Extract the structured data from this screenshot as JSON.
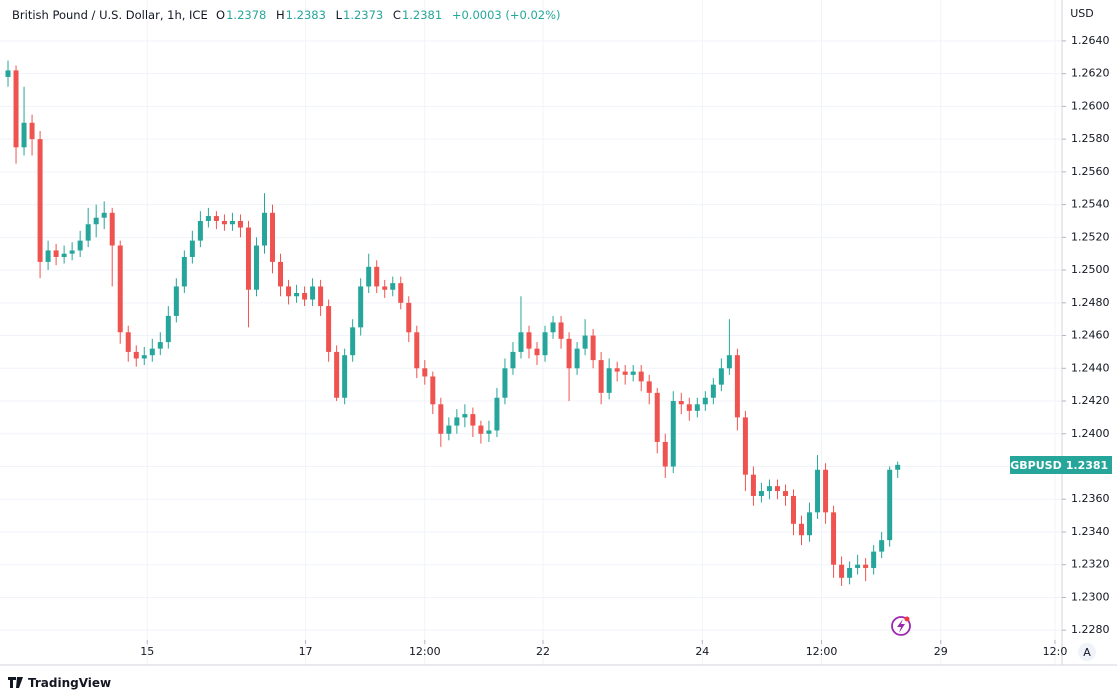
{
  "header": {
    "title": "British Pound / U.S. Dollar, 1h, ICE",
    "open_label": "O",
    "open": 1.2378,
    "high_label": "H",
    "high": 1.2383,
    "low_label": "L",
    "low": 1.2373,
    "close_label": "C",
    "close": 1.2381,
    "change": "+0.0003 (+0.02%)"
  },
  "footer": {
    "brand": "TradingView"
  },
  "ui": {
    "auto_button": "A"
  },
  "chart_data": {
    "type": "candlestick",
    "y_axis_label": "USD",
    "last_price": 1.2381,
    "up_color": "#26a69a",
    "down_color": "#ef5350",
    "grid": true,
    "xlim": [
      -1,
      131.5
    ],
    "ylim": [
      1.2274,
      1.2665
    ],
    "xticks": [
      {
        "value": 17.375,
        "label": "15"
      },
      {
        "value": 37.125,
        "label": "17"
      },
      {
        "value": 52,
        "label": "12:00"
      },
      {
        "value": 66.75,
        "label": "22"
      },
      {
        "value": 86.625,
        "label": "24"
      },
      {
        "value": 101.5,
        "label": "12:00"
      },
      {
        "value": 116.375,
        "label": "29"
      },
      {
        "value": 130.625,
        "label": "12:0"
      }
    ],
    "yticks": [
      {
        "value": 1.228,
        "label": "1.2280"
      },
      {
        "value": 1.23,
        "label": "1.2300"
      },
      {
        "value": 1.232,
        "label": "1.2320"
      },
      {
        "value": 1.234,
        "label": "1.2340"
      },
      {
        "value": 1.236,
        "label": "1.2360"
      },
      {
        "value": 1.238,
        "label": "1.2380"
      },
      {
        "value": 1.24,
        "label": "1.2400"
      },
      {
        "value": 1.242,
        "label": "1.2420"
      },
      {
        "value": 1.244,
        "label": "1.2440"
      },
      {
        "value": 1.246,
        "label": "1.2460"
      },
      {
        "value": 1.248,
        "label": "1.2480"
      },
      {
        "value": 1.25,
        "label": "1.2500"
      },
      {
        "value": 1.252,
        "label": "1.2520"
      },
      {
        "value": 1.254,
        "label": "1.2540"
      },
      {
        "value": 1.256,
        "label": "1.2560"
      },
      {
        "value": 1.258,
        "label": "1.2580"
      },
      {
        "value": 1.26,
        "label": "1.2600"
      },
      {
        "value": 1.262,
        "label": "1.2620"
      },
      {
        "value": 1.264,
        "label": "1.2640"
      }
    ],
    "series": [
      {
        "name": "GBPUSD",
        "open": [
          1.2618,
          1.2622,
          1.2575,
          1.259,
          1.258,
          1.2505,
          1.2512,
          1.2508,
          1.251,
          1.2512,
          1.2518,
          1.2528,
          1.2532,
          1.2535,
          1.2515,
          1.2462,
          1.245,
          1.2446,
          1.2448,
          1.2452,
          1.2456,
          1.2472,
          1.249,
          1.2508,
          1.2518,
          1.253,
          1.2533,
          1.253,
          1.2528,
          1.253,
          1.2526,
          1.2488,
          1.2515,
          1.2535,
          1.2505,
          1.249,
          1.2484,
          1.2486,
          1.2482,
          1.249,
          1.2478,
          1.245,
          1.2422,
          1.2448,
          1.2465,
          1.249,
          1.2502,
          1.249,
          1.2488,
          1.2492,
          1.248,
          1.2462,
          1.244,
          1.2435,
          1.2418,
          1.24,
          1.2405,
          1.241,
          1.2412,
          1.2405,
          1.24,
          1.2402,
          1.2422,
          1.244,
          1.245,
          1.2462,
          1.2452,
          1.2448,
          1.2462,
          1.2468,
          1.2458,
          1.244,
          1.2452,
          1.246,
          1.2445,
          1.2425,
          1.244,
          1.2438,
          1.2436,
          1.2438,
          1.2432,
          1.2425,
          1.2395,
          1.238,
          1.242,
          1.2418,
          1.2414,
          1.2418,
          1.2422,
          1.243,
          1.244,
          1.2448,
          1.241,
          1.2375,
          1.2362,
          1.2365,
          1.2368,
          1.2365,
          1.2362,
          1.2345,
          1.2338,
          1.2352,
          1.2378,
          1.2352,
          1.232,
          1.2312,
          1.2318,
          1.232,
          1.2318,
          1.2328,
          1.2335,
          1.2378
        ],
        "high": [
          1.2628,
          1.2625,
          1.2612,
          1.2595,
          1.2585,
          1.2518,
          1.2516,
          1.2515,
          1.2517,
          1.2524,
          1.2538,
          1.254,
          1.2542,
          1.2538,
          1.2518,
          1.2466,
          1.2454,
          1.2453,
          1.2458,
          1.2462,
          1.2478,
          1.2495,
          1.2512,
          1.2524,
          1.2536,
          1.2538,
          1.2536,
          1.2534,
          1.2535,
          1.2534,
          1.253,
          1.252,
          1.2547,
          1.254,
          1.251,
          1.2494,
          1.2491,
          1.249,
          1.2495,
          1.2494,
          1.2482,
          1.2454,
          1.2452,
          1.247,
          1.2495,
          1.251,
          1.2506,
          1.2494,
          1.2496,
          1.2496,
          1.2484,
          1.2466,
          1.2445,
          1.2438,
          1.2422,
          1.241,
          1.2415,
          1.2418,
          1.2416,
          1.2408,
          1.2408,
          1.2428,
          1.2446,
          1.2456,
          1.2484,
          1.2466,
          1.2456,
          1.2466,
          1.2472,
          1.2472,
          1.2462,
          1.2456,
          1.247,
          1.2464,
          1.245,
          1.2446,
          1.2444,
          1.2442,
          1.2442,
          1.2442,
          1.2436,
          1.2428,
          1.24,
          1.2426,
          1.2425,
          1.2422,
          1.2422,
          1.2426,
          1.2434,
          1.2446,
          1.247,
          1.2452,
          1.2414,
          1.238,
          1.237,
          1.2372,
          1.2372,
          1.2369,
          1.2366,
          1.235,
          1.2358,
          1.2387,
          1.2382,
          1.2356,
          1.2325,
          1.2322,
          1.2326,
          1.2324,
          1.2332,
          1.234,
          1.238,
          1.2383
        ],
        "low": [
          1.2612,
          1.2565,
          1.257,
          1.257,
          1.2495,
          1.25,
          1.2503,
          1.2504,
          1.2506,
          1.2508,
          1.2514,
          1.252,
          1.2525,
          1.249,
          1.2455,
          1.2444,
          1.2441,
          1.2442,
          1.2444,
          1.2448,
          1.2452,
          1.2468,
          1.2486,
          1.2504,
          1.2514,
          1.2526,
          1.2525,
          1.2524,
          1.2524,
          1.252,
          1.2465,
          1.2484,
          1.251,
          1.2498,
          1.2484,
          1.2479,
          1.248,
          1.2478,
          1.2478,
          1.2472,
          1.2444,
          1.242,
          1.2418,
          1.2444,
          1.246,
          1.2486,
          1.2486,
          1.2483,
          1.2484,
          1.2476,
          1.2456,
          1.2434,
          1.243,
          1.2412,
          1.2392,
          1.2396,
          1.24,
          1.2404,
          1.2398,
          1.2394,
          1.2395,
          1.2398,
          1.2418,
          1.2436,
          1.2446,
          1.2446,
          1.2442,
          1.2444,
          1.2458,
          1.2452,
          1.242,
          1.2436,
          1.2448,
          1.244,
          1.2418,
          1.2421,
          1.2432,
          1.243,
          1.2432,
          1.2426,
          1.2418,
          1.2388,
          1.2373,
          1.2376,
          1.2412,
          1.2408,
          1.241,
          1.2414,
          1.2418,
          1.2426,
          1.2436,
          1.2402,
          1.2365,
          1.2356,
          1.2358,
          1.236,
          1.236,
          1.2356,
          1.2338,
          1.2332,
          1.2334,
          1.2348,
          1.2345,
          1.2312,
          1.2307,
          1.2308,
          1.2314,
          1.231,
          1.2314,
          1.2324,
          1.2331,
          1.2373
        ],
        "close": [
          1.2622,
          1.2575,
          1.259,
          1.258,
          1.2505,
          1.2512,
          1.2508,
          1.251,
          1.2512,
          1.2518,
          1.2528,
          1.2532,
          1.2535,
          1.2515,
          1.2462,
          1.245,
          1.2446,
          1.2448,
          1.2452,
          1.2456,
          1.2472,
          1.249,
          1.2508,
          1.2518,
          1.253,
          1.2533,
          1.253,
          1.2528,
          1.253,
          1.2526,
          1.2488,
          1.2515,
          1.2535,
          1.2505,
          1.249,
          1.2484,
          1.2486,
          1.2482,
          1.249,
          1.2478,
          1.245,
          1.2422,
          1.2448,
          1.2465,
          1.249,
          1.2502,
          1.249,
          1.2488,
          1.2492,
          1.248,
          1.2462,
          1.244,
          1.2435,
          1.2418,
          1.24,
          1.2405,
          1.241,
          1.2412,
          1.2405,
          1.24,
          1.2402,
          1.2422,
          1.244,
          1.245,
          1.2462,
          1.2452,
          1.2448,
          1.2462,
          1.2468,
          1.2458,
          1.244,
          1.2452,
          1.246,
          1.2445,
          1.2425,
          1.244,
          1.2438,
          1.2436,
          1.2438,
          1.2432,
          1.2425,
          1.2395,
          1.238,
          1.242,
          1.2418,
          1.2414,
          1.2418,
          1.2422,
          1.243,
          1.244,
          1.2448,
          1.241,
          1.2375,
          1.2362,
          1.2365,
          1.2368,
          1.2365,
          1.2362,
          1.2345,
          1.2338,
          1.2352,
          1.2378,
          1.2352,
          1.232,
          1.2312,
          1.2318,
          1.232,
          1.2318,
          1.2328,
          1.2335,
          1.2378,
          1.2381
        ]
      }
    ]
  }
}
